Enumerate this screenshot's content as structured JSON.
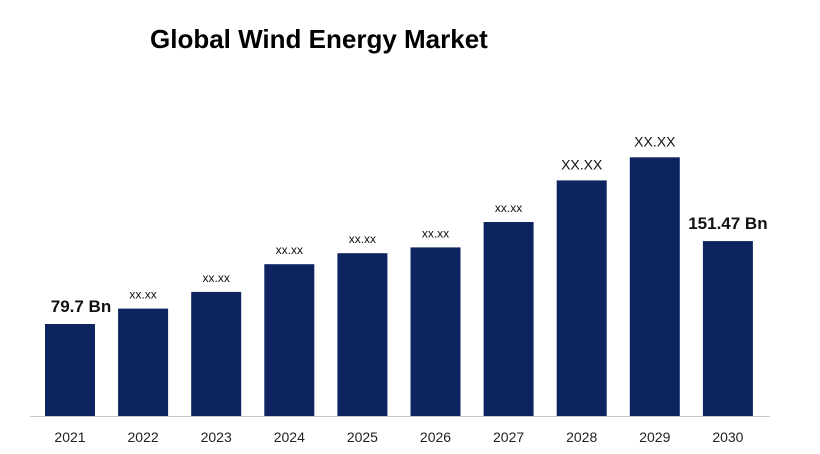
{
  "chart_data": {
    "type": "bar",
    "title": "Global Wind Energy Market",
    "xlabel": "",
    "ylabel": "",
    "grid": false,
    "legend": "none",
    "bar_color": "#0d2461",
    "categories": [
      "2021",
      "2022",
      "2023",
      "2024",
      "2025",
      "2026",
      "2027",
      "2028",
      "2029",
      "2030"
    ],
    "values": [
      79.7,
      93.0,
      107.5,
      131.5,
      141.0,
      146.0,
      168.0,
      204.0,
      224.0,
      151.47
    ],
    "data_labels": [
      "79.7 Bn",
      "xx.xx",
      "xx.xx",
      "xx.xx",
      "xx.xx",
      "xx.xx",
      "xx.xx",
      "XX.XX",
      "XX.XX",
      "151.47 Bn"
    ],
    "ylim": [
      0,
      265
    ]
  }
}
